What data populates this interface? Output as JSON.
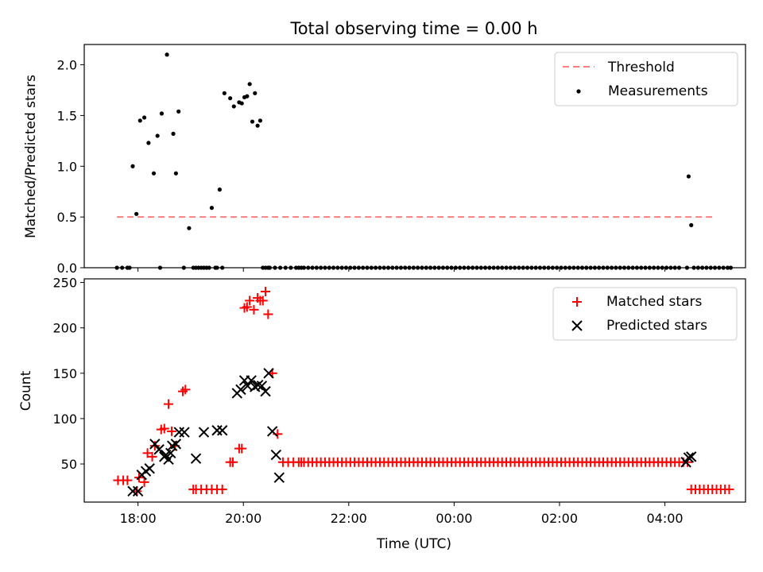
{
  "figure": {
    "title": "Total observing time = 0.00 h",
    "xlabel": "Time (UTC)",
    "top_ylabel": "Matched/Predicted stars",
    "bottom_ylabel": "Count",
    "x_ticks": [
      "18:00",
      "20:00",
      "22:00",
      "00:00",
      "02:00",
      "04:00"
    ]
  },
  "colors": {
    "threshold": "#ff7f7f",
    "measurements": "#000000",
    "matched": "#ff0000",
    "predicted": "#000000"
  },
  "chart_data": [
    {
      "type": "scatter",
      "title": "Total observing time = 0.00 h",
      "xlabel": "",
      "ylabel": "Matched/Predicted stars",
      "x_unit": "hours since 16:00 UTC (x-axis shows clock time)",
      "xlim": [
        0.98,
        13.53
      ],
      "ylim": [
        0,
        2.2
      ],
      "y_ticks": [
        "0.0",
        "0.5",
        "1.0",
        "1.5",
        "2.0"
      ],
      "legend_position": "top-right",
      "series": [
        {
          "name": "Threshold",
          "kind": "dashed-line",
          "x": [
            1.6,
            12.95
          ],
          "y": [
            0.5,
            0.5
          ]
        },
        {
          "name": "Measurements",
          "kind": "dots",
          "x": [
            1.6,
            1.7,
            1.8,
            1.84,
            1.9,
            1.97,
            2.04,
            2.12,
            2.2,
            2.3,
            2.37,
            2.42,
            2.45,
            2.55,
            2.67,
            2.72,
            2.77,
            2.87,
            2.97,
            3.05,
            3.1,
            3.15,
            3.2,
            3.25,
            3.3,
            3.35,
            3.4,
            3.47,
            3.5,
            3.55,
            3.6,
            3.64,
            3.75,
            3.82,
            3.92,
            3.97,
            4.02,
            4.07,
            4.12,
            4.17,
            4.22,
            4.27,
            4.32,
            4.37,
            4.42,
            4.47,
            4.5,
            4.6,
            4.7,
            4.8,
            4.9,
            5.0,
            5.05,
            5.1,
            12.42,
            12.45,
            12.5,
            13.25
          ],
          "y": [
            0,
            0,
            0,
            0,
            1.0,
            0.53,
            1.45,
            1.48,
            1.23,
            0.93,
            1.3,
            0,
            1.52,
            2.1,
            1.32,
            0.93,
            1.54,
            0,
            0.39,
            0,
            0,
            0,
            0,
            0,
            0,
            0,
            0.59,
            0,
            0,
            0.77,
            0,
            1.72,
            1.67,
            1.59,
            1.63,
            1.62,
            1.68,
            1.69,
            1.81,
            1.44,
            1.72,
            1.4,
            1.45,
            0,
            0,
            0,
            0,
            0,
            0,
            0,
            0,
            0,
            0,
            0,
            0,
            0.9,
            0.42,
            0
          ]
        }
      ]
    },
    {
      "type": "scatter",
      "xlabel": "Time (UTC)",
      "ylabel": "Count",
      "x_unit": "hours since 16:00 UTC (x-axis shows clock time)",
      "xlim": [
        0.98,
        13.53
      ],
      "ylim": [
        8,
        254
      ],
      "y_ticks": [
        "50",
        "100",
        "150",
        "200",
        "250"
      ],
      "legend_position": "top-right",
      "series": [
        {
          "name": "Matched stars",
          "marker": "plus",
          "x": [
            1.62,
            1.72,
            1.8,
            1.98,
            2.02,
            2.12,
            2.18,
            2.27,
            2.32,
            2.44,
            2.5,
            2.58,
            2.64,
            2.7,
            2.85,
            2.9,
            3.05,
            3.1,
            3.2,
            3.3,
            3.4,
            3.5,
            3.6,
            3.75,
            3.8,
            3.92,
            3.97,
            4.02,
            4.07,
            4.12,
            4.2,
            4.27,
            4.32,
            4.37,
            4.42,
            4.47,
            4.55,
            4.65,
            4.75,
            4.85,
            4.95,
            5.05,
            5.1
          ],
          "y": [
            32,
            32,
            32,
            20,
            35,
            30,
            62,
            58,
            70,
            88,
            89,
            116,
            86,
            70,
            130,
            132,
            22,
            22,
            22,
            22,
            22,
            22,
            22,
            52,
            52,
            67,
            67,
            222,
            223,
            230,
            220,
            233,
            230,
            230,
            240,
            215,
            150,
            83,
            52,
            52,
            52,
            52,
            52
          ]
        },
        {
          "name": "Predicted stars",
          "marker": "x",
          "x": [
            1.9,
            2.0,
            2.07,
            2.15,
            2.22,
            2.32,
            2.4,
            2.5,
            2.53,
            2.58,
            2.62,
            2.65,
            2.72,
            2.78,
            2.88,
            3.1,
            3.25,
            3.5,
            3.6,
            3.88,
            3.95,
            4.02,
            4.08,
            4.15,
            4.22,
            4.28,
            4.35,
            4.42,
            4.48,
            4.55,
            4.62,
            4.68,
            12.4,
            12.45,
            12.5
          ],
          "y": [
            20,
            20,
            38,
            42,
            45,
            72,
            66,
            58,
            60,
            55,
            62,
            70,
            72,
            85,
            85,
            56,
            85,
            87,
            87,
            128,
            132,
            142,
            136,
            142,
            135,
            137,
            136,
            130,
            150,
            86,
            60,
            35,
            52,
            57,
            58
          ]
        }
      ]
    }
  ]
}
